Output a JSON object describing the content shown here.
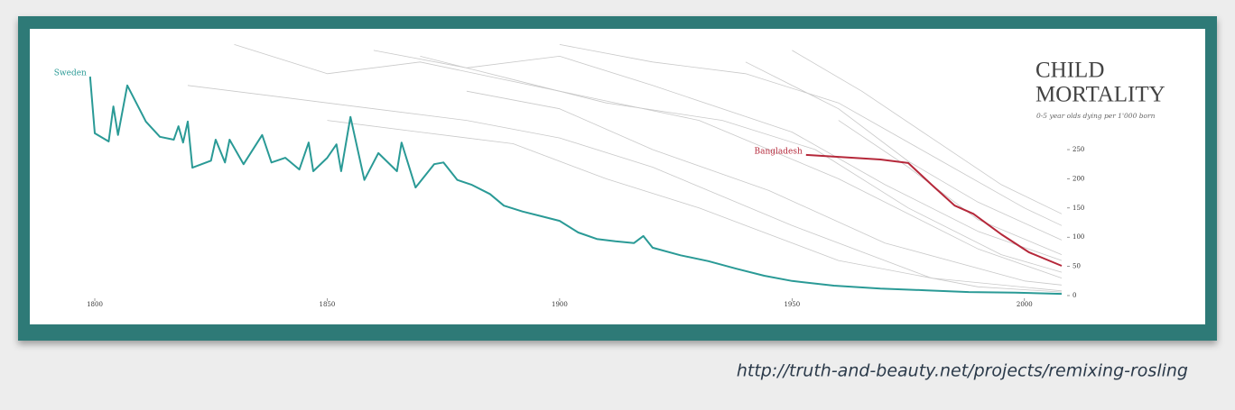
{
  "chart_data": {
    "type": "line",
    "title_lines": [
      "CHILD",
      "MORTALITY"
    ],
    "subtitle": "0-5 year olds dying per 1'000 born",
    "xlim": [
      1799,
      2008
    ],
    "xticks": [
      1800,
      1850,
      1900,
      1950,
      2000
    ],
    "ylim": [
      0,
      430
    ],
    "yticks": [
      0,
      50,
      100,
      150,
      200,
      250
    ],
    "series": [
      {
        "color": "#c9c9c9",
        "x": [
          1830,
          1850,
          1870,
          1900,
          1930,
          1960,
          1990,
          2008
        ],
        "values": [
          430,
          380,
          400,
          350,
          300,
          200,
          80,
          30
        ]
      },
      {
        "color": "#c9c9c9",
        "x": [
          1860,
          1880,
          1900,
          1920,
          1950,
          1970,
          1990,
          2008
        ],
        "values": [
          420,
          390,
          410,
          360,
          280,
          190,
          110,
          60
        ]
      },
      {
        "color": "#c9c9c9",
        "x": [
          1900,
          1920,
          1940,
          1960,
          1980,
          2000,
          2008
        ],
        "values": [
          430,
          400,
          380,
          330,
          240,
          150,
          120
        ]
      },
      {
        "color": "#c9c9c9",
        "x": [
          1850,
          1870,
          1890,
          1910,
          1930,
          1960,
          1990,
          2008
        ],
        "values": [
          300,
          280,
          260,
          200,
          150,
          60,
          15,
          6
        ]
      },
      {
        "color": "#c9c9c9",
        "x": [
          1880,
          1900,
          1920,
          1945,
          1970,
          2000,
          2008
        ],
        "values": [
          350,
          320,
          250,
          180,
          90,
          25,
          18
        ]
      },
      {
        "color": "#c9c9c9",
        "x": [
          1950,
          1965,
          1980,
          1995,
          2008
        ],
        "values": [
          420,
          350,
          270,
          190,
          140
        ]
      },
      {
        "color": "#c9c9c9",
        "x": [
          1940,
          1960,
          1975,
          1990,
          2008
        ],
        "values": [
          400,
          320,
          230,
          160,
          95
        ]
      },
      {
        "color": "#c9c9c9",
        "x": [
          1870,
          1890,
          1910,
          1935,
          1955,
          1975,
          1995,
          2008
        ],
        "values": [
          410,
          370,
          330,
          300,
          250,
          150,
          70,
          40
        ]
      },
      {
        "color": "#c9c9c9",
        "x": [
          1820,
          1840,
          1860,
          1880,
          1900,
          1920,
          1950,
          1980,
          2008
        ],
        "values": [
          360,
          340,
          320,
          300,
          270,
          220,
          120,
          30,
          8
        ]
      },
      {
        "color": "#c9c9c9",
        "x": [
          1960,
          1975,
          1990,
          2008
        ],
        "values": [
          300,
          220,
          130,
          70
        ]
      },
      {
        "name": "Bangladesh",
        "color": "#b5283a",
        "x": [
          1953,
          1969,
          1975,
          1980,
          1985,
          1989,
          1995,
          2001,
          2008
        ],
        "values": [
          241,
          233,
          227,
          190,
          154,
          140,
          105,
          74,
          51
        ]
      },
      {
        "name": "Sweden",
        "color": "#2a9a96",
        "x": [
          1799,
          1800,
          1803,
          1804,
          1805,
          1807,
          1811,
          1814,
          1817,
          1818,
          1819,
          1820,
          1821,
          1825,
          1826,
          1828,
          1829,
          1832,
          1836,
          1838,
          1841,
          1844,
          1846,
          1847,
          1850,
          1852,
          1853,
          1855,
          1858,
          1861,
          1865,
          1866,
          1869,
          1873,
          1875,
          1878,
          1881,
          1885,
          1888,
          1892,
          1896,
          1900,
          1904,
          1908,
          1912,
          1916,
          1918,
          1920,
          1926,
          1932,
          1938,
          1944,
          1950,
          1959,
          1969,
          1979,
          1988,
          1998,
          2008
        ],
        "values": [
          375,
          278,
          264,
          324,
          275,
          360,
          298,
          272,
          267,
          290,
          262,
          298,
          219,
          231,
          267,
          228,
          267,
          225,
          275,
          228,
          236,
          216,
          262,
          213,
          236,
          259,
          213,
          306,
          198,
          244,
          213,
          262,
          185,
          225,
          228,
          198,
          190,
          174,
          154,
          144,
          136,
          128,
          108,
          97,
          93,
          90,
          102,
          82,
          69,
          59,
          46,
          34,
          25,
          17,
          12,
          9,
          6,
          5,
          3
        ]
      }
    ]
  },
  "caption": "http://truth-and-beauty.net/projects/remixing-rosling"
}
